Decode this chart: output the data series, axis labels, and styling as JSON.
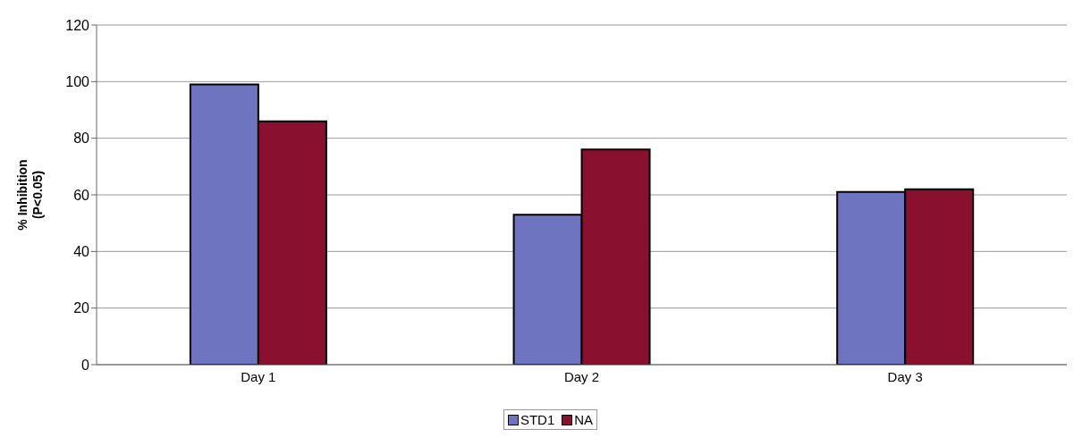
{
  "chart_data": {
    "type": "bar",
    "ylabel": "% Inhibition\n(P<0.05)",
    "categories": [
      "Day 1",
      "Day 2",
      "Day 3"
    ],
    "series": [
      {
        "name": "STD1",
        "color": "#6e74c0",
        "values": [
          99,
          53,
          61
        ]
      },
      {
        "name": "NA",
        "color": "#8a1030",
        "values": [
          86,
          76,
          62
        ]
      }
    ],
    "ylim": [
      0,
      120
    ],
    "yticks": [
      0,
      20,
      40,
      60,
      80,
      100,
      120
    ],
    "grid": "y",
    "legend": "bottom"
  }
}
